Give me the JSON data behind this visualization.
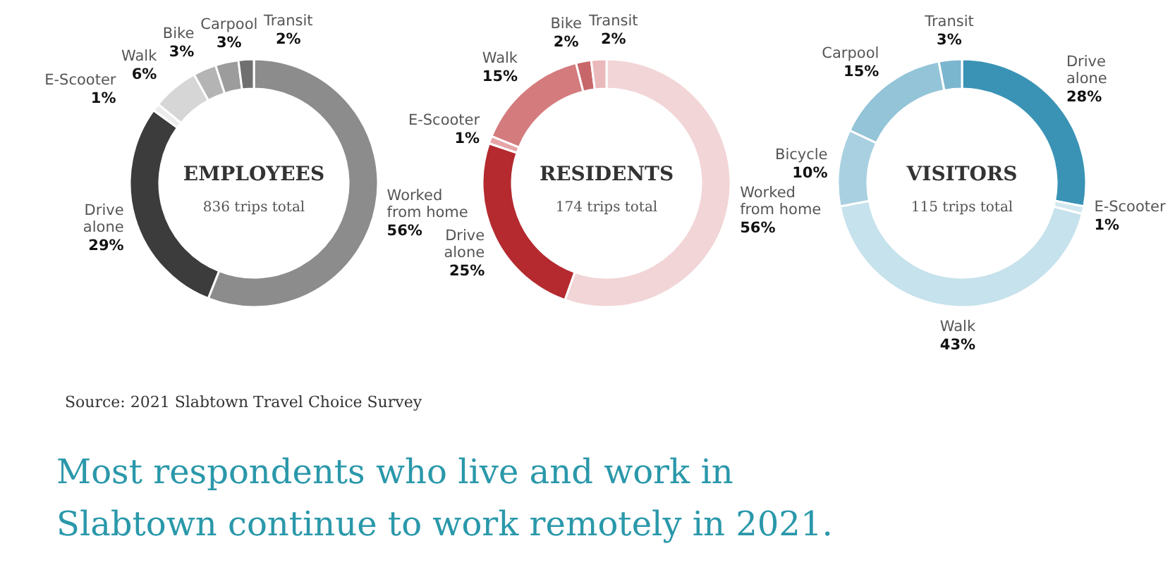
{
  "chart_data": [
    {
      "type": "donut",
      "title": "EMPLOYEES",
      "subtitle": "836 trips total",
      "categories": [
        "Worked from home",
        "Drive alone",
        "E-Scooter",
        "Walk",
        "Bike",
        "Carpool",
        "Transit"
      ],
      "values": [
        56,
        29,
        1,
        6,
        3,
        3,
        2
      ],
      "value_labels": [
        "56%",
        "29%",
        "1%",
        "6%",
        "3%",
        "3%",
        "2%"
      ],
      "colors": [
        "#8c8c8c",
        "#3c3c3c",
        "#ececec",
        "#d6d6d6",
        "#b4b4b4",
        "#9c9c9c",
        "#707070"
      ],
      "annotations": [
        "Source: 2021 Slabtown Travel Choice Survey",
        "Most respondents who live and work in Slabtown continue to work remotely in 2021."
      ]
    },
    {
      "type": "donut",
      "title": "RESIDENTS",
      "subtitle": "174 trips total",
      "categories": [
        "Worked from home",
        "Drive alone",
        "E-Scooter",
        "Walk",
        "Bike",
        "Transit"
      ],
      "values": [
        56,
        25,
        1,
        15,
        2,
        2
      ],
      "value_labels": [
        "56%",
        "25%",
        "1%",
        "15%",
        "2%",
        "2%"
      ],
      "colors": [
        "#f2d5d7",
        "#b42a2f",
        "#e6a5a7",
        "#d47b7e",
        "#c8676a",
        "#e9b9bb"
      ]
    },
    {
      "type": "donut",
      "title": "VISITORS",
      "subtitle": "115 trips total",
      "categories": [
        "Drive alone",
        "E-Scooter",
        "Walk",
        "Bicycle",
        "Carpool",
        "Transit"
      ],
      "values": [
        28,
        1,
        43,
        10,
        15,
        3
      ],
      "value_labels": [
        "28%",
        "1%",
        "43%",
        "10%",
        "15%",
        "3%"
      ],
      "colors": [
        "#3a93b5",
        "#d2e8f0",
        "#c6e2ec",
        "#a8d0e0",
        "#93c4d8",
        "#7bb6cf"
      ]
    }
  ]
}
